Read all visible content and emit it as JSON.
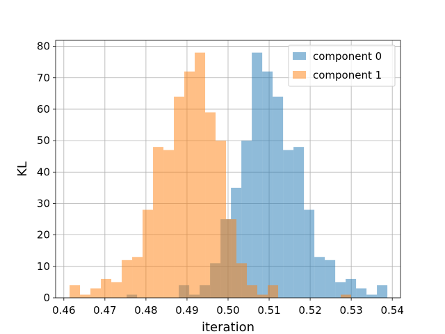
{
  "chart_data": {
    "type": "bar",
    "subtype": "overlapping-histogram",
    "title": "",
    "xlabel": "iteration",
    "ylabel": "KL",
    "xlim": [
      0.458,
      0.542
    ],
    "ylim": [
      0,
      81.9
    ],
    "xticks": [
      0.46,
      0.47,
      0.48,
      0.49,
      0.5,
      0.51,
      0.52,
      0.53,
      0.54
    ],
    "xtick_labels": [
      "0.46",
      "0.47",
      "0.48",
      "0.49",
      "0.50",
      "0.51",
      "0.52",
      "0.53",
      "0.54"
    ],
    "yticks": [
      0,
      10,
      20,
      30,
      40,
      50,
      60,
      70,
      80
    ],
    "ytick_labels": [
      "0",
      "10",
      "20",
      "30",
      "40",
      "50",
      "60",
      "70",
      "80"
    ],
    "grid": true,
    "legend": "top-right",
    "series": [
      {
        "name": "component 0",
        "color": "#1f77b4",
        "alpha": 0.5,
        "bin_start": 0.4626,
        "bin_width": 0.00254,
        "values": [
          0,
          0,
          0,
          0,
          0,
          1,
          0,
          0,
          0,
          0,
          4,
          1,
          4,
          11,
          25,
          35,
          50,
          78,
          72,
          64,
          47,
          48,
          28,
          13,
          12,
          5,
          6,
          3,
          1,
          4
        ]
      },
      {
        "name": "component 1",
        "color": "#ff7f0e",
        "alpha": 0.5,
        "bin_start": 0.4614,
        "bin_width": 0.00254,
        "values": [
          4,
          1,
          3,
          6,
          5,
          12,
          13,
          28,
          48,
          47,
          64,
          72,
          78,
          59,
          50,
          25,
          11,
          4,
          1,
          4,
          0,
          0,
          0,
          0,
          0,
          0,
          1,
          0,
          0,
          0
        ]
      }
    ]
  }
}
